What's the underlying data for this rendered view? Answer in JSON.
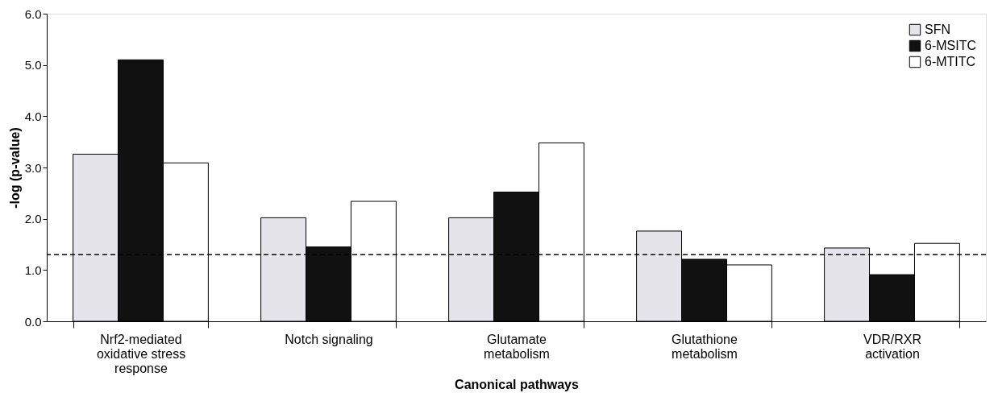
{
  "chart_data": {
    "type": "bar",
    "xlabel": "Canonical pathways",
    "ylabel": "-log (p-value)",
    "categories": [
      "Nrf2-mediated oxidative stress response",
      "Notch signaling",
      "Glutamate metabolism",
      "Glutathione metabolism",
      "VDR/RXR activation"
    ],
    "series": [
      {
        "name": "SFN",
        "color": "#e4e4ea",
        "values": [
          3.26,
          2.02,
          2.02,
          1.76,
          1.43
        ]
      },
      {
        "name": "6-MSITC",
        "color": "#111111",
        "values": [
          5.1,
          1.45,
          2.52,
          1.21,
          0.91
        ]
      },
      {
        "name": "6-MTITC",
        "color": "#ffffff",
        "values": [
          3.09,
          2.34,
          3.48,
          1.1,
          1.52
        ]
      }
    ],
    "ylim": [
      0,
      6
    ],
    "yticks": [
      {
        "value": 0,
        "label": "0.0"
      },
      {
        "value": 1,
        "label": "1.0"
      },
      {
        "value": 2,
        "label": "2.0"
      },
      {
        "value": 3,
        "label": "3.0"
      },
      {
        "value": 4,
        "label": "4.0"
      },
      {
        "value": 5,
        "label": "5.0"
      },
      {
        "value": 6,
        "label": "6.0"
      }
    ],
    "ref_lines": [
      {
        "axis": "y",
        "value": 1.3,
        "label": null,
        "line_style": "dashed",
        "color": "#000000"
      }
    ],
    "legend": "top right",
    "grid": false
  }
}
